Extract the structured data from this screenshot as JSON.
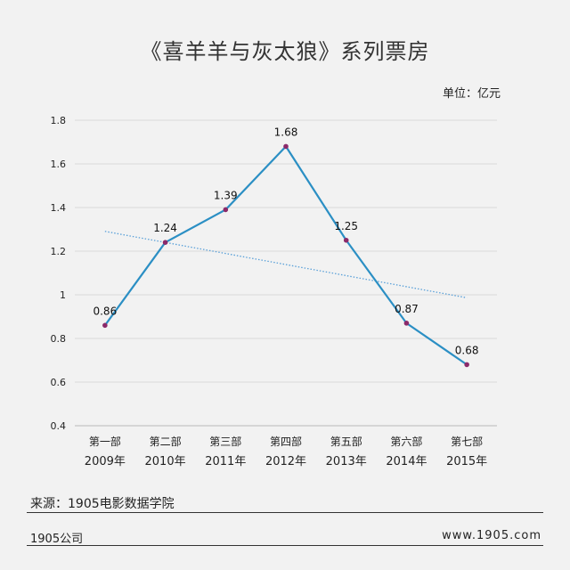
{
  "chart_data": {
    "type": "line",
    "title": "《喜羊羊与灰太狼》系列票房",
    "unit_label": "单位：亿元",
    "categories": [
      {
        "part": "第一部",
        "year": "2009年"
      },
      {
        "part": "第二部",
        "year": "2010年"
      },
      {
        "part": "第三部",
        "year": "2011年"
      },
      {
        "part": "第四部",
        "year": "2012年"
      },
      {
        "part": "第五部",
        "year": "2013年"
      },
      {
        "part": "第六部",
        "year": "2014年"
      },
      {
        "part": "第七部",
        "year": "2015年"
      }
    ],
    "series": [
      {
        "values": [
          0.86,
          1.24,
          1.39,
          1.68,
          1.25,
          0.87,
          0.68
        ],
        "color": "#2b8fc4",
        "marker_color": "#8b2a6a"
      }
    ],
    "data_labels": [
      "0.86",
      "1.24",
      "1.39",
      "1.68",
      "1.25",
      "0.87",
      "0.68"
    ],
    "trendline": {
      "type": "linear",
      "style": "dotted",
      "color": "#5aa0d8"
    },
    "ylim": [
      0.4,
      1.8
    ],
    "yticks": [
      0.4,
      0.6,
      0.8,
      1,
      1.2,
      1.4,
      1.6,
      1.8
    ],
    "ytick_labels": [
      "0.4",
      "0.6",
      "0.8",
      "1",
      "1.2",
      "1.4",
      "1.6",
      "1.8"
    ],
    "grid": true
  },
  "footer": {
    "source": "来源：1905电影数据学院",
    "left": "1905公司",
    "right": "www.1905.com"
  }
}
